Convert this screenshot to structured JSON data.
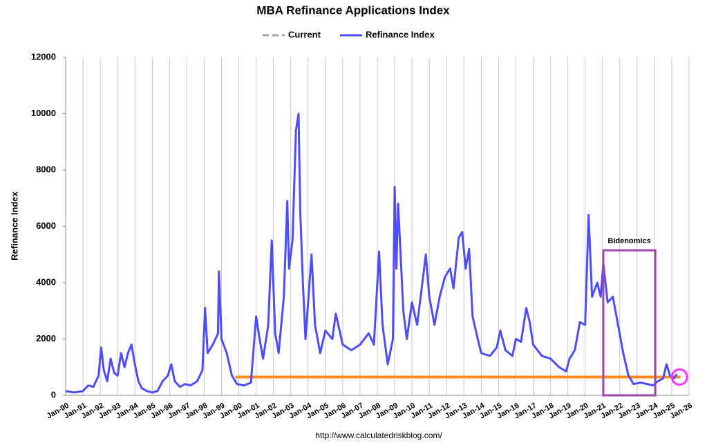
{
  "chart_data": {
    "type": "line",
    "title": "MBA Refinance Applications Index",
    "y_label": "Refinance Index",
    "source": "http://www.calculatedriskblog.com/",
    "grid": "vertical",
    "xlim": [
      1990,
      2026
    ],
    "ylim": [
      0,
      12000
    ],
    "yticks": [
      0,
      2000,
      4000,
      6000,
      8000,
      10000,
      12000
    ],
    "xticks": [
      {
        "value": 1990,
        "label": "Jan-90"
      },
      {
        "value": 1991,
        "label": "Jan-91"
      },
      {
        "value": 1992,
        "label": "Jan-92"
      },
      {
        "value": 1993,
        "label": "Jan-93"
      },
      {
        "value": 1994,
        "label": "Jan-94"
      },
      {
        "value": 1995,
        "label": "Jan-95"
      },
      {
        "value": 1996,
        "label": "Jan-96"
      },
      {
        "value": 1997,
        "label": "Jan-97"
      },
      {
        "value": 1998,
        "label": "Jan-98"
      },
      {
        "value": 1999,
        "label": "Jan-99"
      },
      {
        "value": 2000,
        "label": "Jan-00"
      },
      {
        "value": 2001,
        "label": "Jan-01"
      },
      {
        "value": 2002,
        "label": "Jan-02"
      },
      {
        "value": 2003,
        "label": "Jan-03"
      },
      {
        "value": 2004,
        "label": "Jan-04"
      },
      {
        "value": 2005,
        "label": "Jan-05"
      },
      {
        "value": 2006,
        "label": "Jan-06"
      },
      {
        "value": 2007,
        "label": "Jan-07"
      },
      {
        "value": 2008,
        "label": "Jan-08"
      },
      {
        "value": 2009,
        "label": "Jan-09"
      },
      {
        "value": 2010,
        "label": "Jan-10"
      },
      {
        "value": 2011,
        "label": "Jan-11"
      },
      {
        "value": 2012,
        "label": "Jan-12"
      },
      {
        "value": 2013,
        "label": "Jan-13"
      },
      {
        "value": 2014,
        "label": "Jan-14"
      },
      {
        "value": 2015,
        "label": "Jan-15"
      },
      {
        "value": 2016,
        "label": "Jan-16"
      },
      {
        "value": 2017,
        "label": "Jan-17"
      },
      {
        "value": 2018,
        "label": "Jan-18"
      },
      {
        "value": 2019,
        "label": "Jan-19"
      },
      {
        "value": 2020,
        "label": "Jan-20"
      },
      {
        "value": 2021,
        "label": "Jan-21"
      },
      {
        "value": 2022,
        "label": "Jan-22"
      },
      {
        "value": 2023,
        "label": "Jan-23"
      },
      {
        "value": 2024,
        "label": "Jan-24"
      },
      {
        "value": 2025,
        "label": "Jan-25"
      },
      {
        "value": 2026,
        "label": "Jan-26"
      }
    ],
    "series": [
      {
        "name": "Current",
        "color": "#ff8c1a",
        "legend_color": "#a6a6a6",
        "x": [
          1999.8,
          2025.5
        ],
        "values": [
          650,
          650
        ]
      },
      {
        "name": "Refinance Index",
        "color": "#4d4dff",
        "x": [
          1990.0,
          1990.5,
          1991.0,
          1991.3,
          1991.6,
          1991.9,
          1992.05,
          1992.2,
          1992.4,
          1992.6,
          1992.8,
          1993.0,
          1993.2,
          1993.4,
          1993.6,
          1993.8,
          1994.0,
          1994.2,
          1994.4,
          1994.7,
          1995.0,
          1995.3,
          1995.6,
          1995.9,
          1996.1,
          1996.3,
          1996.6,
          1996.9,
          1997.2,
          1997.6,
          1997.9,
          1998.05,
          1998.2,
          1998.5,
          1998.8,
          1998.85,
          1999.0,
          1999.3,
          1999.6,
          1999.9,
          2000.3,
          2000.7,
          2001.0,
          2001.2,
          2001.4,
          2001.7,
          2001.9,
          2002.1,
          2002.3,
          2002.6,
          2002.8,
          2002.9,
          2003.1,
          2003.3,
          2003.45,
          2003.55,
          2003.7,
          2003.85,
          2004.2,
          2004.4,
          2004.7,
          2005.0,
          2005.4,
          2005.6,
          2006.0,
          2006.5,
          2007.0,
          2007.5,
          2007.8,
          2008.1,
          2008.3,
          2008.6,
          2008.9,
          2009.0,
          2009.1,
          2009.2,
          2009.5,
          2009.7,
          2010.0,
          2010.3,
          2010.6,
          2010.8,
          2011.0,
          2011.3,
          2011.6,
          2011.9,
          2012.2,
          2012.4,
          2012.7,
          2012.9,
          2013.1,
          2013.3,
          2013.5,
          2013.8,
          2014.0,
          2014.5,
          2014.9,
          2015.1,
          2015.4,
          2015.8,
          2016.0,
          2016.3,
          2016.6,
          2016.8,
          2017.0,
          2017.5,
          2018.0,
          2018.5,
          2018.9,
          2019.1,
          2019.4,
          2019.7,
          2020.0,
          2020.2,
          2020.4,
          2020.7,
          2020.9,
          2021.05,
          2021.3,
          2021.6,
          2021.9,
          2022.2,
          2022.5,
          2022.8,
          2023.2,
          2023.6,
          2023.9,
          2024.2,
          2024.5,
          2024.7,
          2024.9,
          2025.1,
          2025.3
        ],
        "values": [
          150,
          100,
          150,
          350,
          300,
          700,
          1700,
          900,
          500,
          1300,
          800,
          700,
          1500,
          1000,
          1500,
          1800,
          1100,
          500,
          250,
          150,
          100,
          150,
          500,
          700,
          1100,
          500,
          300,
          400,
          350,
          500,
          900,
          3100,
          1500,
          1800,
          2200,
          4400,
          2000,
          1500,
          700,
          400,
          350,
          450,
          2800,
          2000,
          1300,
          2500,
          5500,
          2200,
          1500,
          3500,
          6900,
          4500,
          5500,
          9400,
          10000,
          6500,
          4000,
          2000,
          5000,
          2500,
          1500,
          2300,
          2000,
          2900,
          1800,
          1600,
          1800,
          2200,
          1800,
          5100,
          2500,
          1100,
          2000,
          7400,
          4500,
          6800,
          3000,
          2000,
          3300,
          2500,
          4000,
          5000,
          3500,
          2500,
          3500,
          4200,
          4500,
          3800,
          5600,
          5800,
          4500,
          5200,
          2800,
          2000,
          1500,
          1400,
          1700,
          2300,
          1600,
          1400,
          2000,
          1900,
          3100,
          2600,
          1800,
          1400,
          1300,
          1000,
          850,
          1300,
          1600,
          2600,
          2500,
          6400,
          3500,
          4000,
          3500,
          4700,
          3300,
          3500,
          2500,
          1500,
          700,
          400,
          450,
          400,
          350,
          500,
          600,
          1100,
          700,
          600,
          750
        ]
      }
    ],
    "annotations": [
      {
        "text": "Bidenomics",
        "shape": "box",
        "color": "#9e4aa8",
        "x": [
          2021.05,
          2024.05
        ],
        "y": [
          0,
          5150
        ]
      },
      {
        "shape": "circle",
        "color": "#ff33ff",
        "x": [
          2025.45
        ],
        "y": [
          650
        ]
      }
    ]
  }
}
